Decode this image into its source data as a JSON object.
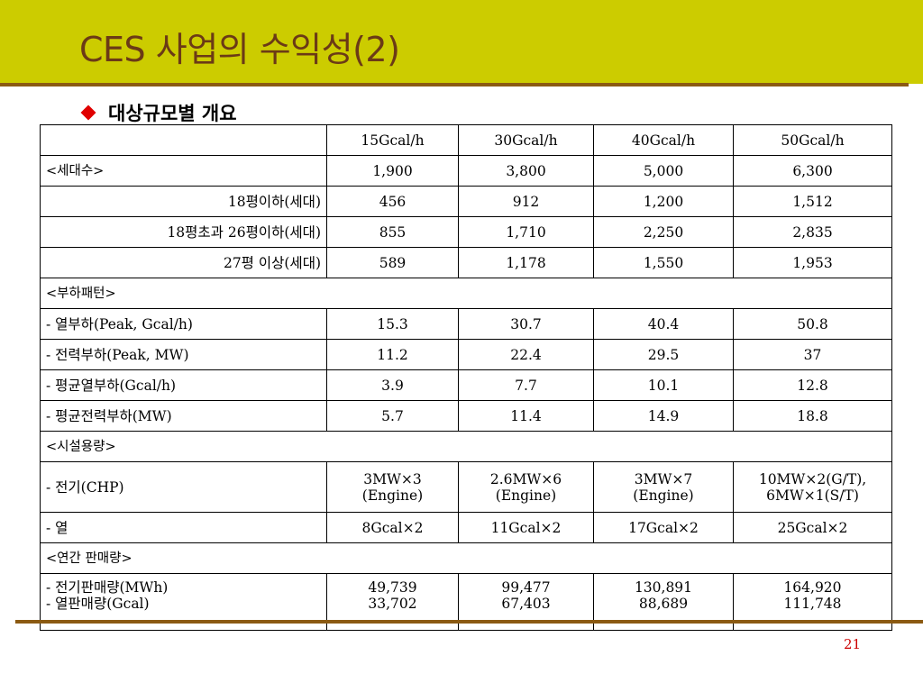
{
  "header": {
    "title": "CES 사업의 수익성(2)",
    "subtitle": "대상규모별 개요"
  },
  "table": {
    "columns": [
      "",
      "15Gcal/h",
      "30Gcal/h",
      "40Gcal/h",
      "50Gcal/h"
    ],
    "rows": [
      {
        "label": "<세대수>",
        "values": [
          "1,900",
          "3,800",
          "5,000",
          "6,300"
        ]
      },
      {
        "label": "18평이하(세대)",
        "values": [
          "456",
          "912",
          "1,200",
          "1,512"
        ]
      },
      {
        "label": "18평초과 26평이하(세대)",
        "values": [
          "855",
          "1,710",
          "2,250",
          "2,835"
        ]
      },
      {
        "label": "27평 이상(세대)",
        "values": [
          "589",
          "1,178",
          "1,550",
          "1,953"
        ]
      },
      {
        "label": "<부하패턴>"
      },
      {
        "label": "- 열부하(Peak, Gcal/h)",
        "values": [
          "15.3",
          "30.7",
          "40.4",
          "50.8"
        ]
      },
      {
        "label": "- 전력부하(Peak, MW)",
        "values": [
          "11.2",
          "22.4",
          "29.5",
          "37"
        ]
      },
      {
        "label": "- 평균열부하(Gcal/h)",
        "values": [
          "3.9",
          "7.7",
          "10.1",
          "12.8"
        ]
      },
      {
        "label": "- 평균전력부하(MW)",
        "values": [
          "5.7",
          "11.4",
          "14.9",
          "18.8"
        ]
      },
      {
        "label": "<시설용량>"
      },
      {
        "label": "- 전기(CHP)",
        "values": [
          [
            "3MW×3",
            "(Engine)"
          ],
          [
            "2.6MW×6",
            "(Engine)"
          ],
          [
            "3MW×7",
            "(Engine)"
          ],
          [
            "10MW×2(G/T),",
            "6MW×1(S/T)"
          ]
        ]
      },
      {
        "label": "- 열",
        "values": [
          "8Gcal×2",
          "11Gcal×2",
          "17Gcal×2",
          "25Gcal×2"
        ]
      },
      {
        "label": "<연간 판매량>"
      },
      {
        "label": [
          "- 전기판매량(MWh)",
          "- 열판매량(Gcal)"
        ],
        "values": [
          [
            "49,739",
            "33,702"
          ],
          [
            "99,477",
            "67,403"
          ],
          [
            "130,891",
            "88,689"
          ],
          [
            "164,920",
            "111,748"
          ]
        ]
      }
    ]
  },
  "footer": {
    "page_number": "21"
  },
  "colors": {
    "title_band": "#cccc00",
    "title_text": "#6b3a16",
    "rule": "#8b5a12",
    "bullet": "#e00000",
    "page_number": "#cc0000"
  },
  "icons": {
    "bullet": "diamond-bullet-icon"
  }
}
